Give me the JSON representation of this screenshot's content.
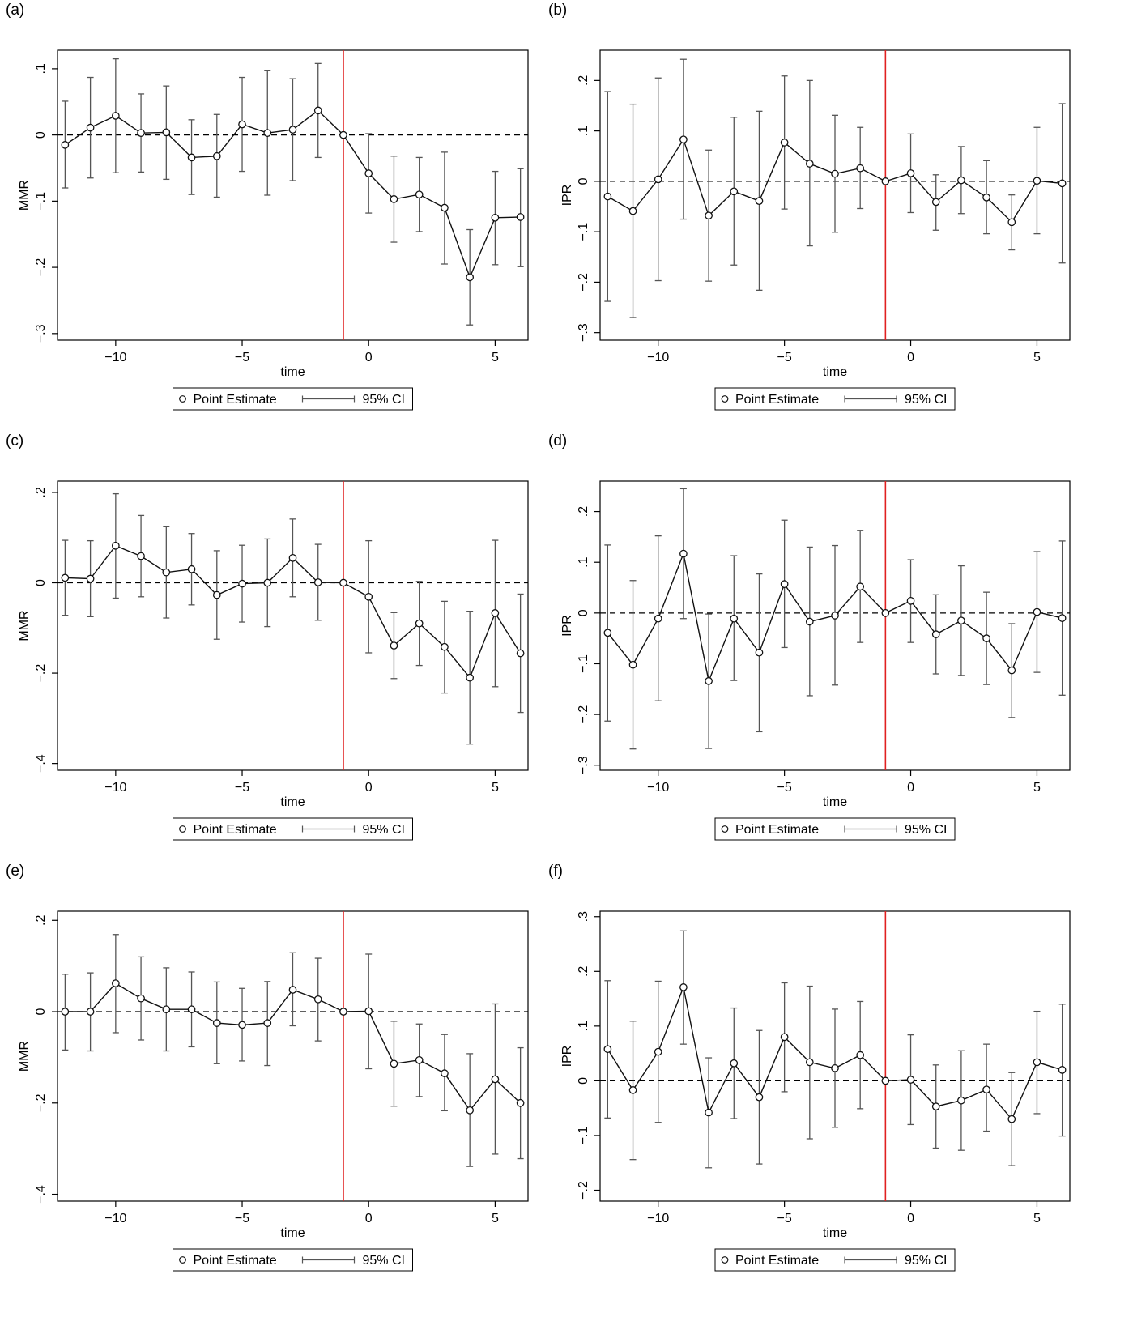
{
  "chart_data": [
    {
      "panel_label": "(a)",
      "type": "line",
      "xlabel": "time",
      "ylabel": "MMR",
      "xlim": [
        -12.3,
        6.3
      ],
      "ylim": [
        -0.31,
        0.128
      ],
      "xticks": [
        -10,
        -5,
        0,
        5
      ],
      "xtick_labels": [
        "−10",
        "−5",
        "0",
        "5"
      ],
      "yticks": [
        -0.3,
        -0.2,
        -0.1,
        0,
        0.1
      ],
      "ytick_labels": [
        "−.3",
        "−.2",
        "−.1",
        "0",
        ".1"
      ],
      "x": [
        -12,
        -11,
        -10,
        -9,
        -8,
        -7,
        -6,
        -5,
        -4,
        -3,
        -2,
        -1,
        0,
        1,
        2,
        3,
        4,
        5,
        6
      ],
      "series": [
        {
          "name": "Point Estimate",
          "values": [
            -0.015,
            0.011,
            0.029,
            0.003,
            0.004,
            -0.034,
            -0.032,
            0.016,
            0.003,
            0.008,
            0.037,
            0.0,
            -0.058,
            -0.097,
            -0.09,
            -0.11,
            -0.215,
            -0.125,
            -0.124
          ],
          "ci_low": [
            -0.08,
            -0.065,
            -0.057,
            -0.056,
            -0.067,
            -0.09,
            -0.094,
            -0.055,
            -0.091,
            -0.069,
            -0.034,
            0.0,
            -0.118,
            -0.162,
            -0.146,
            -0.195,
            -0.287,
            -0.196,
            -0.199
          ],
          "ci_high": [
            0.051,
            0.087,
            0.115,
            0.062,
            0.074,
            0.023,
            0.031,
            0.087,
            0.097,
            0.085,
            0.108,
            0.0,
            0.002,
            -0.032,
            -0.034,
            -0.026,
            -0.143,
            -0.055,
            -0.051
          ]
        }
      ],
      "reference_line_x": -1,
      "reference_line_y": 0,
      "legend": [
        "Point Estimate",
        "95% CI"
      ],
      "legend_position": "bottom-center"
    },
    {
      "panel_label": "(b)",
      "type": "line",
      "xlabel": "time",
      "ylabel": "IPR",
      "xlim": [
        -12.3,
        6.3
      ],
      "ylim": [
        -0.315,
        0.26
      ],
      "xticks": [
        -10,
        -5,
        0,
        5
      ],
      "xtick_labels": [
        "−10",
        "−5",
        "0",
        "5"
      ],
      "yticks": [
        -0.3,
        -0.2,
        -0.1,
        0,
        0.1,
        0.2
      ],
      "ytick_labels": [
        "−.3",
        "−.2",
        "−.1",
        "0",
        ".1",
        ".2"
      ],
      "x": [
        -12,
        -11,
        -10,
        -9,
        -8,
        -7,
        -6,
        -5,
        -4,
        -3,
        -2,
        -1,
        0,
        1,
        2,
        3,
        4,
        5,
        6
      ],
      "series": [
        {
          "name": "Point Estimate",
          "values": [
            -0.03,
            -0.059,
            0.004,
            0.083,
            -0.068,
            -0.02,
            -0.039,
            0.077,
            0.035,
            0.015,
            0.026,
            0.0,
            0.016,
            -0.041,
            0.002,
            -0.032,
            -0.081,
            0.001,
            -0.004
          ],
          "ci_low": [
            -0.238,
            -0.27,
            -0.197,
            -0.075,
            -0.198,
            -0.166,
            -0.216,
            -0.055,
            -0.128,
            -0.101,
            -0.054,
            0.0,
            -0.062,
            -0.097,
            -0.064,
            -0.104,
            -0.136,
            -0.104,
            -0.162
          ],
          "ci_high": [
            0.178,
            0.153,
            0.205,
            0.242,
            0.062,
            0.127,
            0.139,
            0.209,
            0.2,
            0.131,
            0.107,
            0.0,
            0.094,
            0.013,
            0.069,
            0.041,
            -0.027,
            0.107,
            0.154
          ]
        }
      ],
      "reference_line_x": -1,
      "reference_line_y": 0,
      "legend": [
        "Point Estimate",
        "95% CI"
      ],
      "legend_position": "bottom-center"
    },
    {
      "panel_label": "(c)",
      "type": "line",
      "xlabel": "time",
      "ylabel": "MMR",
      "xlim": [
        -12.3,
        6.3
      ],
      "ylim": [
        -0.415,
        0.225
      ],
      "xticks": [
        -10,
        -5,
        0,
        5
      ],
      "xtick_labels": [
        "−10",
        "−5",
        "0",
        "5"
      ],
      "yticks": [
        -0.4,
        -0.2,
        0,
        0.2
      ],
      "ytick_labels": [
        "−.4",
        "−.2",
        "0",
        ".2"
      ],
      "x": [
        -12,
        -11,
        -10,
        -9,
        -8,
        -7,
        -6,
        -5,
        -4,
        -3,
        -2,
        -1,
        0,
        1,
        2,
        3,
        4,
        5,
        6
      ],
      "series": [
        {
          "name": "Point Estimate",
          "values": [
            0.011,
            0.009,
            0.082,
            0.059,
            0.023,
            0.03,
            -0.027,
            -0.002,
            0.0,
            0.055,
            0.001,
            0.0,
            -0.031,
            -0.139,
            -0.09,
            -0.142,
            -0.21,
            -0.067,
            -0.156
          ],
          "ci_low": [
            -0.072,
            -0.075,
            -0.034,
            -0.031,
            -0.078,
            -0.049,
            -0.125,
            -0.087,
            -0.097,
            -0.031,
            -0.083,
            0.0,
            -0.155,
            -0.212,
            -0.183,
            -0.244,
            -0.357,
            -0.23,
            -0.287
          ],
          "ci_high": [
            0.094,
            0.093,
            0.197,
            0.149,
            0.124,
            0.109,
            0.071,
            0.083,
            0.097,
            0.141,
            0.085,
            0.0,
            0.093,
            -0.066,
            0.003,
            -0.041,
            -0.063,
            0.094,
            -0.025
          ]
        }
      ],
      "reference_line_x": -1,
      "reference_line_y": 0,
      "legend": [
        "Point Estimate",
        "95% CI"
      ],
      "legend_position": "bottom-center"
    },
    {
      "panel_label": "(d)",
      "type": "line",
      "xlabel": "time",
      "ylabel": "IPR",
      "xlim": [
        -12.3,
        6.3
      ],
      "ylim": [
        -0.31,
        0.26
      ],
      "xticks": [
        -10,
        -5,
        0,
        5
      ],
      "xtick_labels": [
        "−10",
        "−5",
        "0",
        "5"
      ],
      "yticks": [
        -0.3,
        -0.2,
        -0.1,
        0,
        0.1,
        0.2
      ],
      "ytick_labels": [
        "−.3",
        "−.2",
        "−.1",
        "0",
        ".1",
        ".2"
      ],
      "x": [
        -12,
        -11,
        -10,
        -9,
        -8,
        -7,
        -6,
        -5,
        -4,
        -3,
        -2,
        -1,
        0,
        1,
        2,
        3,
        4,
        5,
        6
      ],
      "series": [
        {
          "name": "Point Estimate",
          "values": [
            -0.039,
            -0.102,
            -0.011,
            0.117,
            -0.134,
            -0.011,
            -0.078,
            0.057,
            -0.017,
            -0.005,
            0.052,
            0.0,
            0.024,
            -0.042,
            -0.015,
            -0.05,
            -0.113,
            0.002,
            -0.01
          ],
          "ci_low": [
            -0.213,
            -0.268,
            -0.173,
            -0.011,
            -0.267,
            -0.133,
            -0.234,
            -0.068,
            -0.163,
            -0.142,
            -0.058,
            0.0,
            -0.058,
            -0.12,
            -0.123,
            -0.141,
            -0.206,
            -0.117,
            -0.162
          ],
          "ci_high": [
            0.134,
            0.064,
            0.152,
            0.245,
            -0.002,
            0.113,
            0.077,
            0.183,
            0.13,
            0.133,
            0.163,
            0.0,
            0.105,
            0.036,
            0.093,
            0.041,
            -0.021,
            0.121,
            0.142
          ]
        }
      ],
      "reference_line_x": -1,
      "reference_line_y": 0,
      "legend": [
        "Point Estimate",
        "95% CI"
      ],
      "legend_position": "bottom-center"
    },
    {
      "panel_label": "(e)",
      "type": "line",
      "xlabel": "time",
      "ylabel": "MMR",
      "xlim": [
        -12.3,
        6.3
      ],
      "ylim": [
        -0.415,
        0.22
      ],
      "xticks": [
        -10,
        -5,
        0,
        5
      ],
      "xtick_labels": [
        "−10",
        "−5",
        "0",
        "5"
      ],
      "yticks": [
        -0.4,
        -0.2,
        0,
        0.2
      ],
      "ytick_labels": [
        "−.4",
        "−.2",
        "0",
        ".2"
      ],
      "x": [
        -12,
        -11,
        -10,
        -9,
        -8,
        -7,
        -6,
        -5,
        -4,
        -3,
        -2,
        -1,
        0,
        1,
        2,
        3,
        4,
        5,
        6
      ],
      "series": [
        {
          "name": "Point Estimate",
          "values": [
            0.0,
            0.0,
            0.062,
            0.029,
            0.005,
            0.005,
            -0.025,
            -0.029,
            -0.025,
            0.048,
            0.027,
            0.0,
            0.001,
            -0.114,
            -0.106,
            -0.135,
            -0.216,
            -0.148,
            -0.2
          ],
          "ci_low": [
            -0.084,
            -0.086,
            -0.046,
            -0.062,
            -0.086,
            -0.077,
            -0.114,
            -0.108,
            -0.118,
            -0.031,
            -0.064,
            0.0,
            -0.125,
            -0.207,
            -0.186,
            -0.217,
            -0.339,
            -0.312,
            -0.322
          ],
          "ci_high": [
            0.082,
            0.085,
            0.169,
            0.12,
            0.096,
            0.087,
            0.065,
            0.051,
            0.066,
            0.129,
            0.117,
            0.0,
            0.126,
            -0.021,
            -0.027,
            -0.05,
            -0.092,
            0.017,
            -0.079
          ]
        }
      ],
      "reference_line_x": -1,
      "reference_line_y": 0,
      "legend": [
        "Point Estimate",
        "95% CI"
      ],
      "legend_position": "bottom-center"
    },
    {
      "panel_label": "(f)",
      "type": "line",
      "xlabel": "time",
      "ylabel": "IPR",
      "xlim": [
        -12.3,
        6.3
      ],
      "ylim": [
        -0.22,
        0.31
      ],
      "xticks": [
        -10,
        -5,
        0,
        5
      ],
      "xtick_labels": [
        "−10",
        "−5",
        "0",
        "5"
      ],
      "yticks": [
        -0.2,
        -0.1,
        0,
        0.1,
        0.2,
        0.3
      ],
      "ytick_labels": [
        "−.2",
        "−.1",
        "0",
        ".1",
        ".2",
        ".3"
      ],
      "x": [
        -12,
        -11,
        -10,
        -9,
        -8,
        -7,
        -6,
        -5,
        -4,
        -3,
        -2,
        -1,
        0,
        1,
        2,
        3,
        4,
        5,
        6
      ],
      "series": [
        {
          "name": "Point Estimate",
          "values": [
            0.058,
            -0.017,
            0.053,
            0.171,
            -0.058,
            0.032,
            -0.03,
            0.08,
            0.034,
            0.023,
            0.047,
            0.0,
            0.002,
            -0.047,
            -0.036,
            -0.016,
            -0.07,
            0.034,
            0.02
          ],
          "ci_low": [
            -0.068,
            -0.144,
            -0.076,
            0.067,
            -0.159,
            -0.069,
            -0.152,
            -0.02,
            -0.106,
            -0.085,
            -0.051,
            0.0,
            -0.08,
            -0.123,
            -0.127,
            -0.092,
            -0.155,
            -0.06,
            -0.101
          ],
          "ci_high": [
            0.183,
            0.109,
            0.182,
            0.274,
            0.042,
            0.133,
            0.092,
            0.179,
            0.173,
            0.131,
            0.145,
            0.0,
            0.084,
            0.029,
            0.055,
            0.067,
            0.015,
            0.127,
            0.14
          ]
        }
      ],
      "reference_line_x": -1,
      "reference_line_y": 0,
      "legend": [
        "Point Estimate",
        "95% CI"
      ],
      "legend_position": "bottom-center"
    }
  ]
}
